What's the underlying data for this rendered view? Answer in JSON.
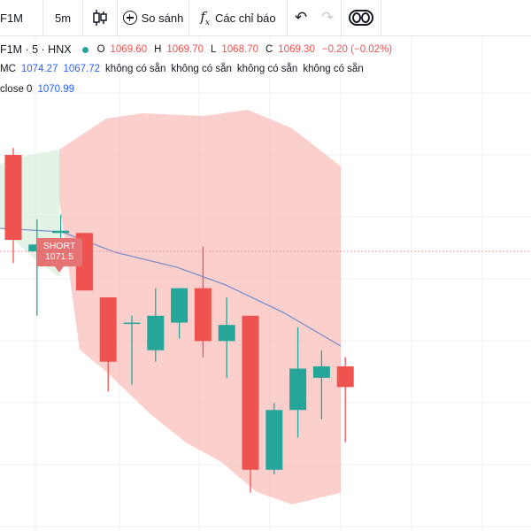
{
  "toolbar": {
    "symbol": "F1M",
    "interval": "5m",
    "compare_label": "So sánh",
    "indicators_label": "Các chỉ báo",
    "icons": {
      "chart_type": "candles-icon",
      "compare": "plus-circle-icon",
      "indicators": "fx-icon",
      "undo": "undo-icon",
      "redo": "redo-icon",
      "toggle": "toggle-icon"
    },
    "fx_glyph": "f",
    "fx_sub": "x",
    "undo_glyph": "↶",
    "redo_glyph": "↷"
  },
  "legend": {
    "title": "F1M · 5 · HNX",
    "status_color": "#26a69a",
    "ohlc": {
      "o_label": "O",
      "o": "1069.60",
      "h_label": "H",
      "h": "1069.70",
      "l_label": "L",
      "l": "1068.70",
      "c_label": "C",
      "c": "1069.30",
      "change": "−0.20 (−0.02%)"
    },
    "indicator1": {
      "name": "MC",
      "v1": "1074.27",
      "v2": "1067.72",
      "na": [
        "không có sẵn",
        "không có sẵn",
        "không có sẵn",
        "không có sẵn"
      ]
    },
    "indicator2": {
      "name": "close 0",
      "value": "1070.99"
    }
  },
  "short_tag": {
    "line1": "SHORT",
    "line2": "1071.5"
  },
  "colors": {
    "up": "#26a69a",
    "down": "#ef5350",
    "ma_line": "#7e8fc9",
    "short_fill": "#f7a8a2",
    "long_fill": "#d9efdc",
    "grid": "#eef0f4",
    "price_line": "#f29b98"
  },
  "chart_data": {
    "type": "candlestick",
    "price_line": 1069.3,
    "candles": [
      {
        "o": 1073.5,
        "h": 1073.8,
        "l": 1068.8,
        "c": 1069.8
      },
      {
        "o": 1069.3,
        "h": 1070.7,
        "l": 1066.5,
        "c": 1069.6
      },
      {
        "o": 1070.1,
        "h": 1070.9,
        "l": 1069.0,
        "c": 1070.2
      },
      {
        "o": 1070.1,
        "h": 1070.1,
        "l": 1067.7,
        "c": 1067.6
      },
      {
        "o": 1067.3,
        "h": 1067.3,
        "l": 1063.2,
        "c": 1064.5
      },
      {
        "o": 1066.2,
        "h": 1066.5,
        "l": 1063.5,
        "c": 1066.2
      },
      {
        "o": 1065.0,
        "h": 1067.7,
        "l": 1064.5,
        "c": 1066.5
      },
      {
        "o": 1066.2,
        "h": 1067.7,
        "l": 1065.5,
        "c": 1067.7
      },
      {
        "o": 1067.7,
        "h": 1069.5,
        "l": 1064.7,
        "c": 1065.4
      },
      {
        "o": 1065.4,
        "h": 1067.3,
        "l": 1063.8,
        "c": 1066.1
      },
      {
        "o": 1066.5,
        "h": 1066.5,
        "l": 1058.8,
        "c": 1059.8
      },
      {
        "o": 1059.8,
        "h": 1062.7,
        "l": 1059.6,
        "c": 1062.4
      },
      {
        "o": 1062.4,
        "h": 1066.0,
        "l": 1061.2,
        "c": 1064.2
      },
      {
        "o": 1063.8,
        "h": 1065.0,
        "l": 1062.0,
        "c": 1064.3
      },
      {
        "o": 1064.3,
        "h": 1064.7,
        "l": 1061.0,
        "c": 1063.4
      }
    ],
    "ma": [
      1072.1,
      1071.2,
      1070.5,
      1069.4,
      1068.0
    ],
    "short_position": {
      "entry": 1071.5,
      "stop": 1077.5,
      "target": 1058.8
    }
  }
}
